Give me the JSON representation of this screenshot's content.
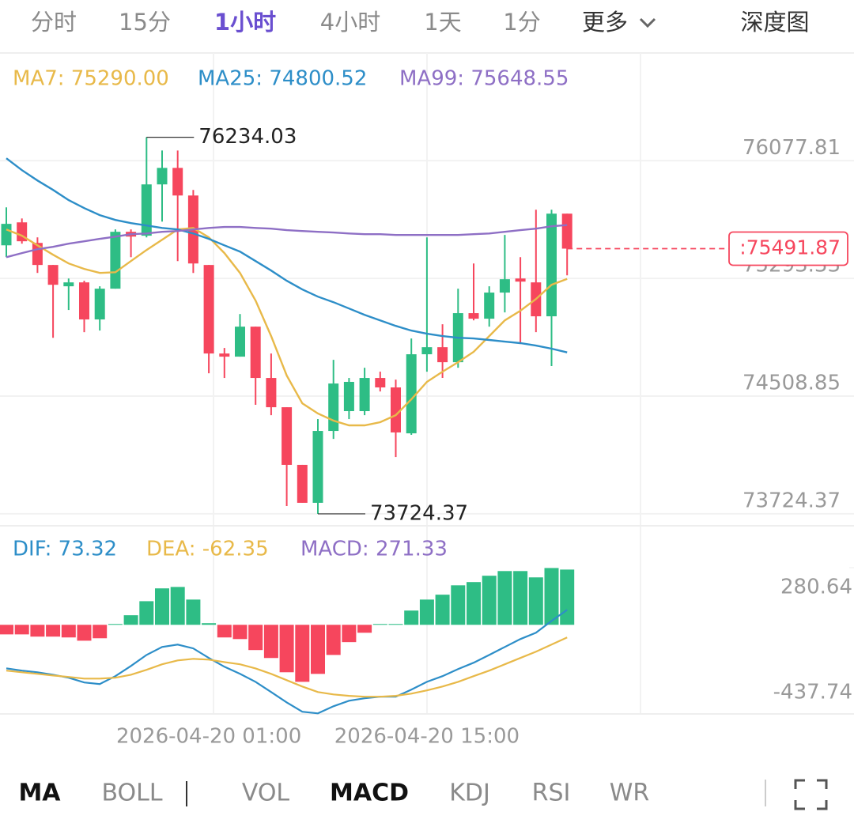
{
  "tabs": {
    "items": [
      "分时",
      "15分",
      "1小时",
      "4小时",
      "1天",
      "1分",
      "更多"
    ],
    "active": 2,
    "depth": "深度图"
  },
  "chart_data": [
    {
      "type": "candlestick",
      "categories": [
        null,
        null,
        null,
        null,
        null,
        null,
        null,
        null,
        null,
        null,
        null,
        null,
        null,
        "2026-04-20 01:00",
        null,
        null,
        null,
        null,
        null,
        null,
        null,
        null,
        null,
        null,
        null,
        null,
        null,
        "2026-04-20 15:00",
        null,
        null,
        null,
        null,
        null,
        null,
        null,
        null,
        null
      ],
      "open": [
        75514,
        75667,
        75530,
        75383,
        75241,
        75267,
        75020,
        75225,
        75604,
        75578,
        75920,
        76030,
        75846,
        75383,
        74793,
        74772,
        74972,
        74630,
        74435,
        74051,
        73798,
        74277,
        74409,
        74409,
        74630,
        74567,
        74261,
        74788,
        74835,
        74735,
        75062,
        75025,
        75199,
        75293,
        75267,
        75041,
        75725
      ],
      "high": [
        75767,
        75693,
        75567,
        75383,
        75293,
        75278,
        75241,
        75620,
        75620,
        76234.03,
        76146,
        76146,
        75883,
        75383,
        74830,
        75056,
        74972,
        74793,
        74435,
        74051,
        74356,
        74751,
        74630,
        74698,
        74672,
        74619,
        74893,
        75567,
        74988,
        75225,
        75393,
        75241,
        75583,
        75435,
        75751,
        75751,
        75725
      ],
      "low": [
        75435,
        75525,
        75330,
        74898,
        75083,
        74935,
        74946,
        75225,
        75435,
        75567,
        75672,
        75409,
        75330,
        74661,
        74630,
        74772,
        74451,
        74382,
        73777,
        73798,
        73724.37,
        74224,
        74356,
        74382,
        74540,
        74103,
        74251,
        74672,
        74630,
        74698,
        75014,
        74972,
        75067,
        74856,
        74935,
        74709,
        75314
      ],
      "close": [
        75657,
        75541,
        75383,
        75251,
        75267,
        75020,
        75225,
        75604,
        75572,
        75920,
        76030,
        75846,
        75393,
        74793,
        74772,
        74972,
        74630,
        74435,
        74051,
        73798,
        74277,
        74593,
        74604,
        74630,
        74567,
        74267,
        74788,
        74835,
        74735,
        75062,
        75025,
        75199,
        75288,
        75272,
        75041,
        75725,
        75491.87
      ],
      "colors": {
        "up": "#2ebd85",
        "down": "#f6465d"
      },
      "series": [
        {
          "name": "MA7: 75290.00",
          "color": "#e8b949",
          "values": [
            75620,
            75578,
            75514,
            75451,
            75393,
            75357,
            75330,
            75335,
            75409,
            75483,
            75551,
            75620,
            75630,
            75567,
            75462,
            75330,
            75146,
            74909,
            74646,
            74461,
            74393,
            74346,
            74314,
            74314,
            74335,
            74382,
            74488,
            74604,
            74672,
            74735,
            74804,
            74909,
            75014,
            75078,
            75156,
            75251,
            75290
          ]
        },
        {
          "name": "MA25: 74800.52",
          "color": "#2d8ec8",
          "values": [
            76094,
            76015,
            75946,
            75883,
            75815,
            75762,
            75715,
            75683,
            75662,
            75646,
            75630,
            75620,
            75593,
            75557,
            75514,
            75472,
            75409,
            75346,
            75278,
            75220,
            75172,
            75135,
            75093,
            75051,
            75014,
            74977,
            74946,
            74925,
            74909,
            74898,
            74893,
            74883,
            74872,
            74862,
            74846,
            74825,
            74800.52
          ]
        },
        {
          "name": "MA99: 75648.55",
          "color": "#8e6fc5",
          "values": [
            75435,
            75462,
            75488,
            75504,
            75525,
            75541,
            75557,
            75572,
            75588,
            75593,
            75604,
            75609,
            75620,
            75630,
            75636,
            75636,
            75630,
            75625,
            75615,
            75609,
            75604,
            75599,
            75593,
            75588,
            75588,
            75583,
            75583,
            75583,
            75583,
            75583,
            75588,
            75593,
            75604,
            75615,
            75625,
            75641,
            75648.55
          ]
        }
      ],
      "ylim": [
        73645,
        76780
      ],
      "yticks": [
        76077.81,
        75293.33,
        74508.85,
        73724.37
      ],
      "annotations": [
        76234.03,
        73724.37
      ],
      "current_price": {
        "value": 75491.87,
        "label": ":75491.87"
      },
      "grid": true
    },
    {
      "type": "macd",
      "colors": {
        "up": "#2ebd85",
        "down": "#f6465d"
      },
      "series": [
        {
          "name": "DIF: 73.32",
          "type": "line",
          "color": "#2d8ec8",
          "values": [
            -214,
            -225,
            -233,
            -245,
            -260,
            -283,
            -291,
            -252,
            -202,
            -148,
            -109,
            -97,
            -116,
            -163,
            -206,
            -241,
            -280,
            -330,
            -381,
            -427,
            -435,
            -400,
            -373,
            -361,
            -353,
            -353,
            -318,
            -280,
            -252,
            -217,
            -186,
            -148,
            -109,
            -70,
            -39,
            19,
            73.32
          ]
        },
        {
          "name": "DEA: -62.35",
          "type": "line",
          "color": "#e8b949",
          "values": [
            -225,
            -233,
            -241,
            -249,
            -256,
            -264,
            -264,
            -260,
            -245,
            -221,
            -194,
            -175,
            -167,
            -171,
            -183,
            -194,
            -214,
            -241,
            -272,
            -303,
            -330,
            -342,
            -349,
            -353,
            -353,
            -349,
            -338,
            -322,
            -303,
            -280,
            -252,
            -225,
            -194,
            -163,
            -132,
            -97,
            -62.35
          ]
        },
        {
          "name": "MACD: 271.33",
          "type": "bar",
          "color": "#8e6fc5",
          "values": [
            -47,
            -47,
            -58,
            -58,
            -62,
            -78,
            -66,
            4,
            47,
            116,
            179,
            186,
            124,
            8,
            -62,
            -70,
            -124,
            -163,
            -233,
            -280,
            -241,
            -148,
            -85,
            -39,
            4,
            4,
            70,
            124,
            148,
            194,
            210,
            241,
            264,
            264,
            233,
            279,
            271.33
          ]
        }
      ],
      "ylim": [
        -437.74,
        280.64
      ],
      "yticks": [
        280.64,
        -437.74
      ]
    }
  ],
  "indicators": {
    "main": [
      "MA",
      "BOLL"
    ],
    "sub": [
      "VOL",
      "MACD",
      "KDJ",
      "RSI",
      "WR"
    ],
    "active_main": 0,
    "active_sub": 1
  }
}
